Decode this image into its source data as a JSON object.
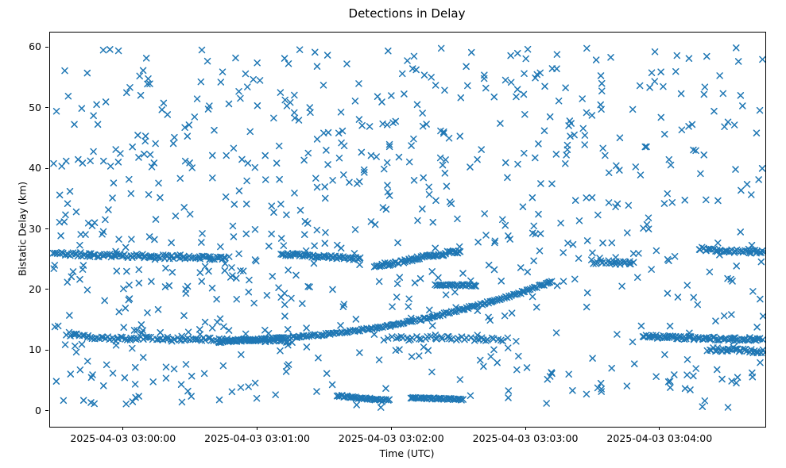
{
  "figure": {
    "background": "#ffffff"
  },
  "chart_data": {
    "type": "scatter",
    "title": "Detections in Delay",
    "xlabel": "Time (UTC)",
    "ylabel": "Bistatic Delay (km)",
    "legend": null,
    "grid": false,
    "marker": {
      "shape": "x",
      "color": "#1f77b4",
      "size": 7,
      "line_width": 1.5
    },
    "axes": {
      "x_type": "time",
      "x_tick_labels": [
        "2025-04-03 03:00:00",
        "2025-04-03 03:01:00",
        "2025-04-03 03:02:00",
        "2025-04-03 03:03:00",
        "2025-04-03 03:04:00"
      ],
      "x_ticks_seconds": [
        0,
        60,
        120,
        180,
        240
      ],
      "x_range_seconds": [
        -33,
        287
      ],
      "y_ticks": [
        0,
        10,
        20,
        30,
        40,
        50,
        60
      ],
      "y_range": [
        -2.5,
        62.5
      ]
    },
    "series": [
      {
        "name": "background-detections",
        "kind": "uniform",
        "seed": 20250403,
        "count": 760,
        "x_range": [
          -32,
          286
        ],
        "y_range": [
          0.6,
          60.0
        ]
      },
      {
        "name": "track-26km-early",
        "kind": "track",
        "seed": 11,
        "count": 105,
        "jitter_y": 0.32,
        "jitter_x": 0.5,
        "points": [
          [
            -32,
            26.1
          ],
          [
            -12,
            25.8
          ],
          [
            8,
            25.6
          ],
          [
            28,
            25.5
          ],
          [
            47,
            25.3
          ]
        ]
      },
      {
        "name": "track-12km-early",
        "kind": "track",
        "seed": 12,
        "count": 105,
        "jitter_y": 0.28,
        "jitter_x": 0.5,
        "points": [
          [
            -26,
            12.9
          ],
          [
            -16,
            12.3
          ],
          [
            0,
            12.1
          ],
          [
            22,
            12.0
          ],
          [
            44,
            11.9
          ],
          [
            62,
            11.7
          ],
          [
            76,
            11.6
          ]
        ]
      },
      {
        "name": "track-rising-main",
        "kind": "track",
        "seed": 13,
        "count": 200,
        "jitter_y": 0.15,
        "jitter_x": 0.4,
        "points": [
          [
            42,
            11.5
          ],
          [
            70,
            12.1
          ],
          [
            95,
            12.9
          ],
          [
            118,
            14.1
          ],
          [
            138,
            15.6
          ],
          [
            158,
            17.5
          ],
          [
            175,
            19.3
          ],
          [
            192,
            21.5
          ]
        ]
      },
      {
        "name": "track-25km-mid",
        "kind": "track",
        "seed": 14,
        "count": 55,
        "jitter_y": 0.22,
        "jitter_x": 0.4,
        "points": [
          [
            70,
            26.0
          ],
          [
            88,
            25.6
          ],
          [
            106,
            25.2
          ]
        ]
      },
      {
        "name": "track-rising-24-26",
        "kind": "track",
        "seed": 15,
        "count": 65,
        "jitter_y": 0.28,
        "jitter_x": 0.4,
        "points": [
          [
            112,
            23.9
          ],
          [
            126,
            24.9
          ],
          [
            140,
            25.9
          ],
          [
            151,
            26.5
          ]
        ]
      },
      {
        "name": "segment-2km-a",
        "kind": "track",
        "seed": 16,
        "count": 38,
        "jitter_y": 0.15,
        "jitter_x": 0.3,
        "points": [
          [
            95,
            2.7
          ],
          [
            106,
            2.2
          ],
          [
            119,
            1.9
          ]
        ]
      },
      {
        "name": "segment-2km-b",
        "kind": "track",
        "seed": 17,
        "count": 38,
        "jitter_y": 0.12,
        "jitter_x": 0.3,
        "points": [
          [
            128,
            2.3
          ],
          [
            152,
            2.0
          ]
        ]
      },
      {
        "name": "segment-21km",
        "kind": "track",
        "seed": 18,
        "count": 28,
        "jitter_y": 0.15,
        "jitter_x": 0.3,
        "points": [
          [
            139,
            20.9
          ],
          [
            158,
            20.8
          ]
        ]
      },
      {
        "name": "segment-12km-mid",
        "kind": "track",
        "seed": 19,
        "count": 40,
        "jitter_y": 0.3,
        "jitter_x": 0.6,
        "points": [
          [
            118,
            12.2
          ],
          [
            145,
            12.1
          ],
          [
            172,
            11.9
          ]
        ]
      },
      {
        "name": "track-12km-late",
        "kind": "track",
        "seed": 21,
        "count": 80,
        "jitter_y": 0.26,
        "jitter_x": 0.5,
        "points": [
          [
            232,
            12.4
          ],
          [
            258,
            12.1
          ],
          [
            286,
            11.9
          ]
        ]
      },
      {
        "name": "track-26km-late",
        "kind": "track",
        "seed": 22,
        "count": 42,
        "jitter_y": 0.3,
        "jitter_x": 0.5,
        "points": [
          [
            257,
            26.9
          ],
          [
            272,
            26.5
          ],
          [
            287,
            26.3
          ]
        ]
      },
      {
        "name": "track-10km-late",
        "kind": "track",
        "seed": 23,
        "count": 34,
        "jitter_y": 0.3,
        "jitter_x": 0.5,
        "points": [
          [
            261,
            10.3
          ],
          [
            287,
            9.9
          ]
        ]
      },
      {
        "name": "cluster-24km-late",
        "kind": "track",
        "seed": 24,
        "count": 22,
        "jitter_y": 0.35,
        "jitter_x": 0.6,
        "points": [
          [
            209,
            24.7
          ],
          [
            228,
            24.4
          ]
        ]
      }
    ]
  }
}
